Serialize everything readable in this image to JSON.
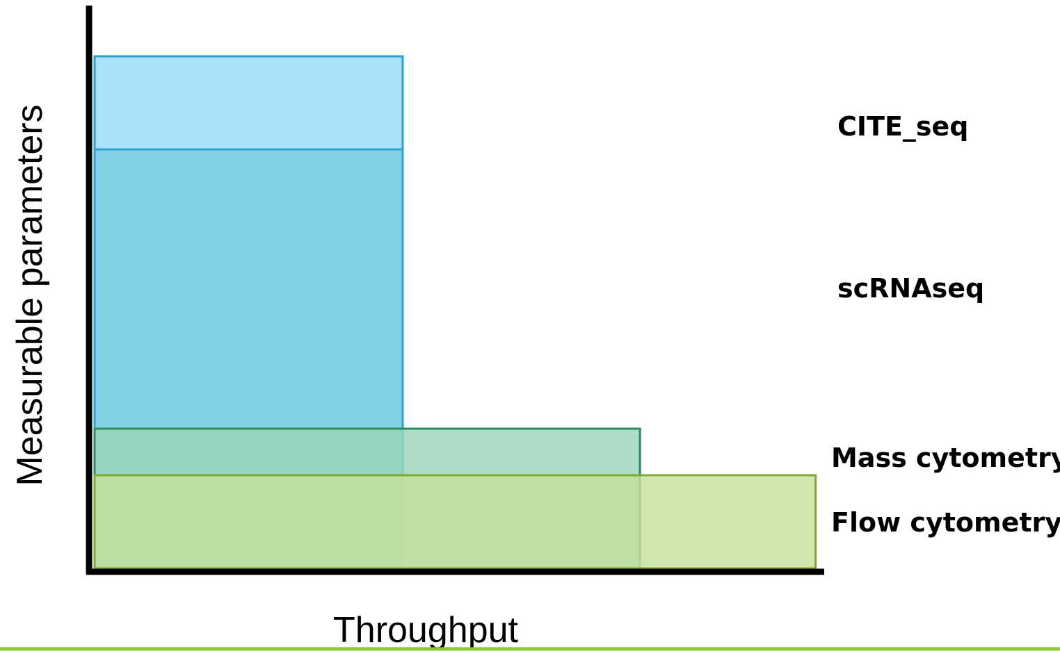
{
  "chart_data": {
    "type": "diagram",
    "xlabel": "Throughput",
    "ylabel": "Measurable parameters",
    "series": [
      {
        "name": "CITE_seq",
        "throughput": 1,
        "parameters": 5.5,
        "fill": "#9DDCFB",
        "stroke": "#2A9FD0"
      },
      {
        "name": "scRNAseq",
        "throughput": 1,
        "parameters": 4.5,
        "fill": "#7ACFE3",
        "stroke": "#2AA6C8"
      },
      {
        "name": "Mass cytometry",
        "throughput": 1.77,
        "parameters": 1.5,
        "fill": "#9BD5B9",
        "stroke": "#2B8A5E"
      },
      {
        "name": "Flow cytometry",
        "throughput": 2.34,
        "parameters": 1.0,
        "fill": "#C6E29A",
        "stroke": "#7FAA2E"
      }
    ]
  },
  "colors": {
    "axis": "#000000",
    "footer_line": "#8DC63F"
  }
}
